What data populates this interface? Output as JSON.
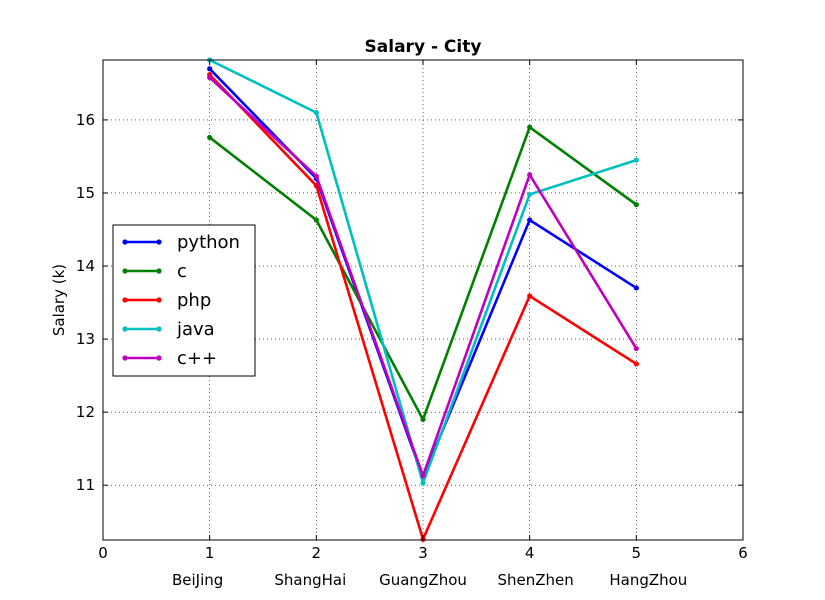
{
  "chart_data": {
    "type": "line",
    "title": "Salary - City",
    "xlabel": "",
    "ylabel": "Salary (k)",
    "xlim": [
      0,
      6
    ],
    "ylim": [
      10.25,
      16.82
    ],
    "xticks": [
      "0",
      "1",
      "2",
      "3",
      "4",
      "5",
      "6"
    ],
    "yticks": [
      "11",
      "12",
      "13",
      "14",
      "15",
      "16"
    ],
    "categories": [
      "BeiJing",
      "ShangHai",
      "GuangZhou",
      "ShenZhen",
      "HangZhou"
    ],
    "x": [
      1,
      2,
      3,
      4,
      5
    ],
    "grid": true,
    "legend_position": "center-left",
    "series": [
      {
        "name": "python",
        "color": "#0000ff",
        "values": [
          16.7,
          15.2,
          11.1,
          14.63,
          13.7
        ]
      },
      {
        "name": "c",
        "color": "#008000",
        "values": [
          15.76,
          14.63,
          11.9,
          15.9,
          14.84
        ]
      },
      {
        "name": "php",
        "color": "#ff0000",
        "values": [
          16.62,
          15.1,
          10.26,
          13.59,
          12.66
        ]
      },
      {
        "name": "java",
        "color": "#00bfbf",
        "values": [
          16.82,
          16.1,
          11.03,
          14.98,
          15.45
        ]
      },
      {
        "name": "c++",
        "color": "#bf00bf",
        "values": [
          16.58,
          15.23,
          11.13,
          15.25,
          12.87
        ]
      }
    ]
  }
}
